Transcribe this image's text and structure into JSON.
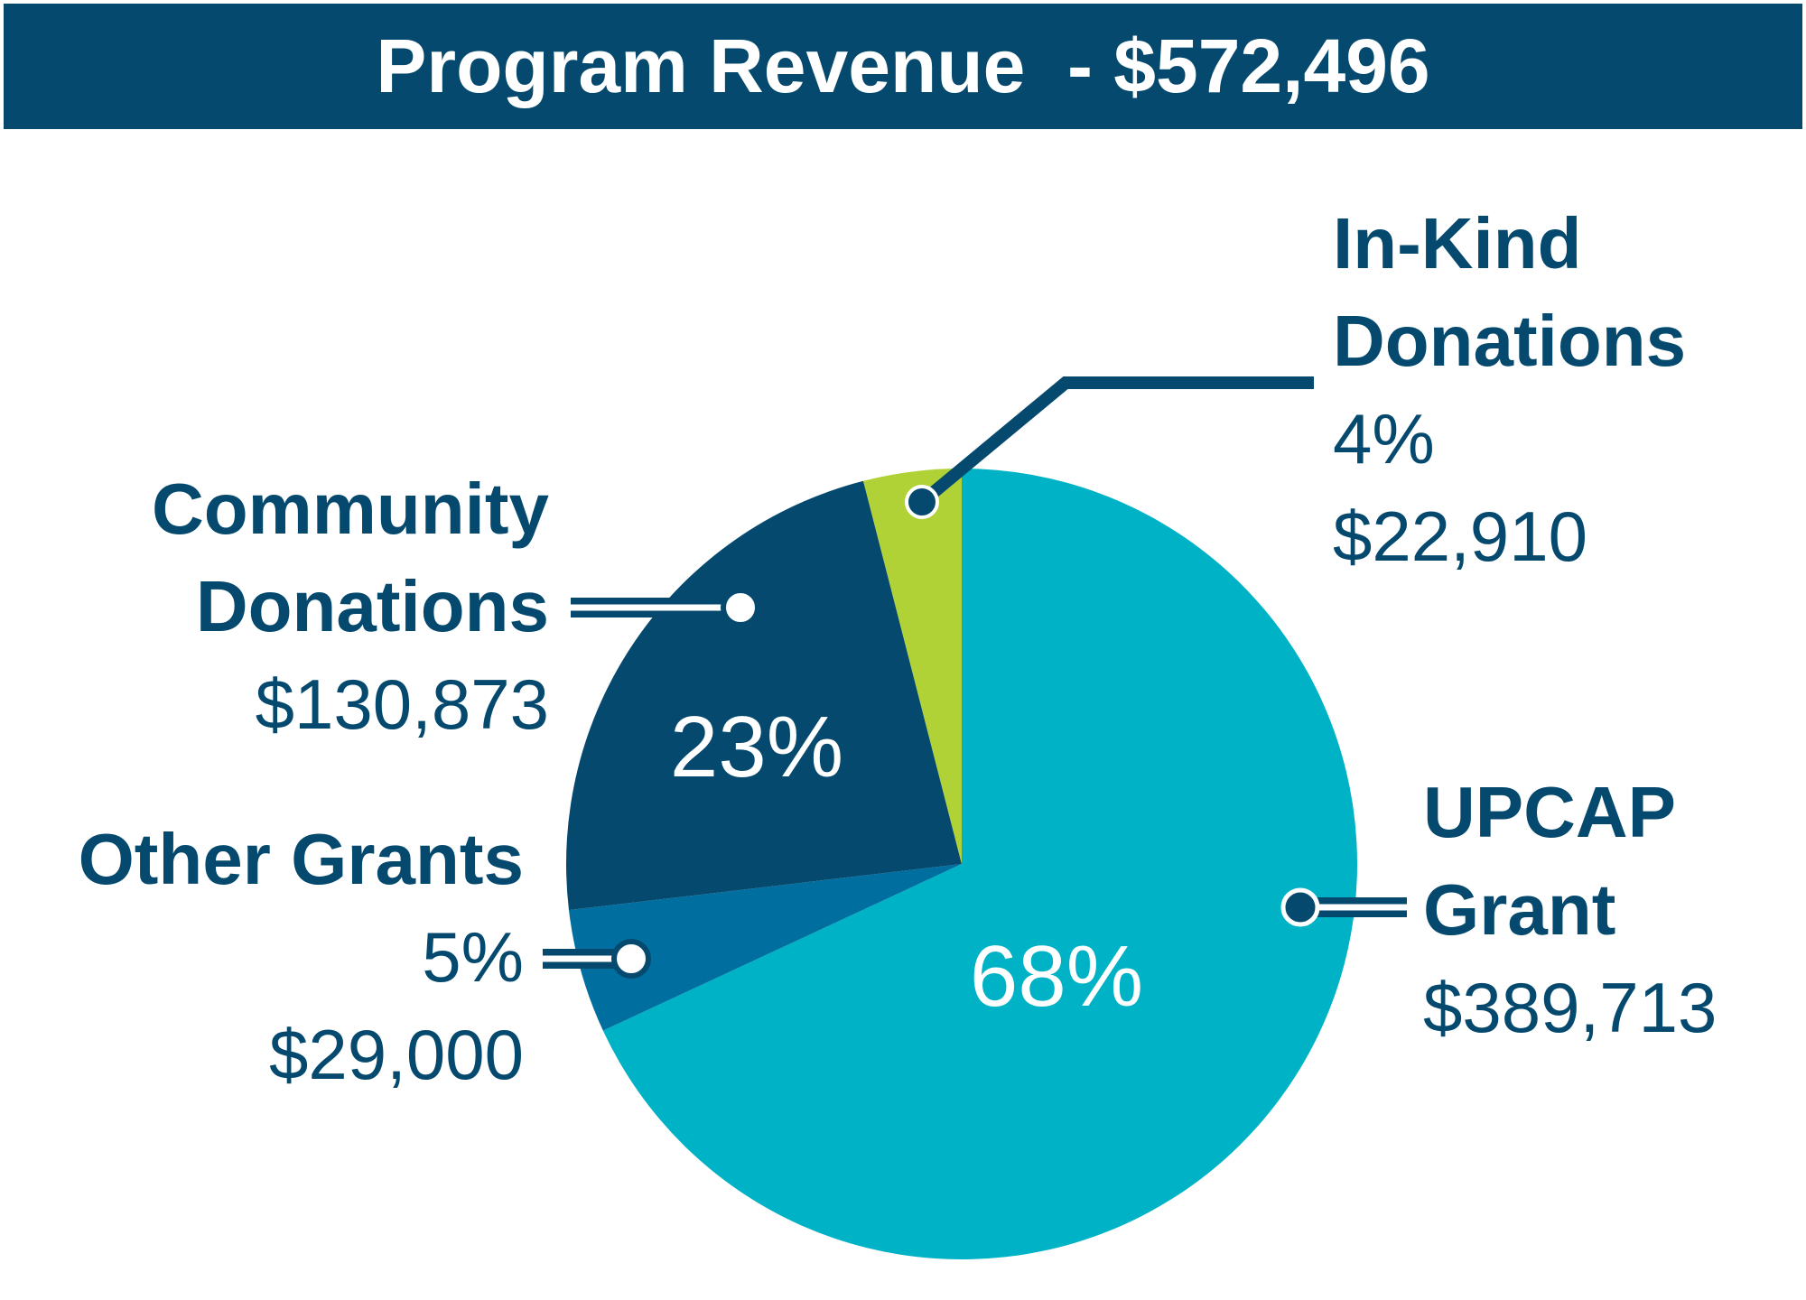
{
  "chart_data": {
    "type": "pie",
    "title": "Program Revenue  - $572,496",
    "slices": [
      {
        "label": "UPCAP Grant",
        "name_lines": [
          "UPCAP",
          "Grant"
        ],
        "value": 389713,
        "percent_label": "68%",
        "amount_label": "$389,713",
        "color": "#00b2c6"
      },
      {
        "label": "Other Grants",
        "name_lines": [
          "Other Grants"
        ],
        "value": 29000,
        "percent_label": "5%",
        "amount_label": "$29,000",
        "color": "#006e9e"
      },
      {
        "label": "Community Donations",
        "name_lines": [
          "Community",
          "Donations"
        ],
        "value": 130873,
        "percent_label": "23%",
        "amount_label": "$130,873",
        "color": "#054a6e"
      },
      {
        "label": "In-Kind Donations",
        "name_lines": [
          "In-Kind",
          "Donations"
        ],
        "value": 22910,
        "percent_label": "4%",
        "amount_label": "$22,910",
        "color": "#b0d236"
      }
    ],
    "start_angle": "12 o'clock",
    "direction": "clockwise",
    "colors": {
      "title_bg": "#054a6e",
      "text": "#054a6e",
      "leader": "#054a6e",
      "inner_label": "#ffffff"
    }
  }
}
